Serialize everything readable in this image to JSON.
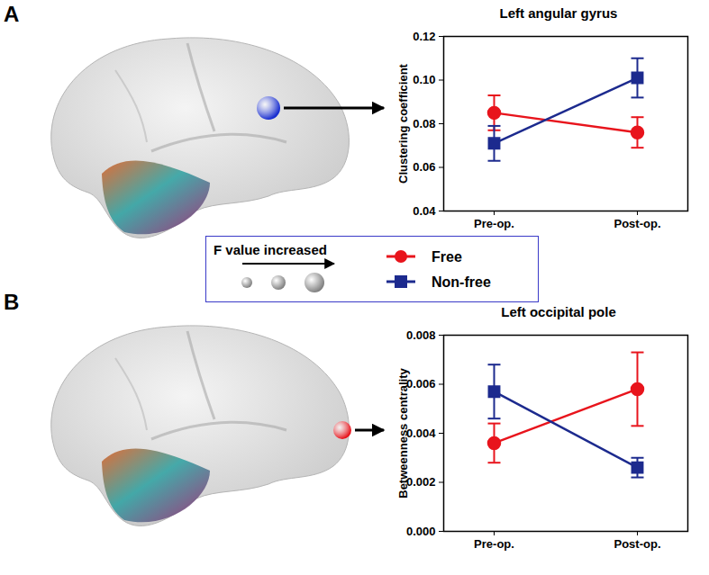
{
  "chart_data": [
    {
      "type": "line",
      "panel_label": "A",
      "title": "Left angular gyrus",
      "y_label": "Clustering coefficient",
      "categories": [
        "Pre-op.",
        "Post-op."
      ],
      "series": [
        {
          "name": "Free",
          "color": "#e8141c",
          "marker": "circle",
          "values": [
            0.085,
            0.076
          ],
          "errors": [
            0.008,
            0.007
          ]
        },
        {
          "name": "Non-free",
          "color": "#1c2a8e",
          "marker": "square",
          "values": [
            0.071,
            0.101
          ],
          "errors": [
            0.008,
            0.009
          ]
        }
      ],
      "ylim": [
        0.04,
        0.12
      ],
      "yticks": [
        0.04,
        0.06,
        0.08,
        {
          "value": 0.1,
          "label": "0.10"
        },
        0.12
      ],
      "grid": false
    },
    {
      "type": "line",
      "panel_label": "B",
      "title": "Left occipital pole",
      "y_label": "Betweenness centrality",
      "categories": [
        "Pre-op.",
        "Post-op."
      ],
      "series": [
        {
          "name": "Free",
          "color": "#e8141c",
          "marker": "circle",
          "values": [
            0.0036,
            0.0058
          ],
          "errors": [
            0.0008,
            0.0015
          ]
        },
        {
          "name": "Non-free",
          "color": "#1c2a8e",
          "marker": "square",
          "values": [
            0.0057,
            0.0026
          ],
          "errors": [
            0.0011,
            0.0004
          ]
        }
      ],
      "ylim": [
        0,
        0.008
      ],
      "yticks": [
        {
          "value": 0,
          "label": "0.000"
        },
        0.002,
        0.004,
        0.006,
        0.008
      ],
      "grid": false
    }
  ],
  "size_legend": "F value increased"
}
